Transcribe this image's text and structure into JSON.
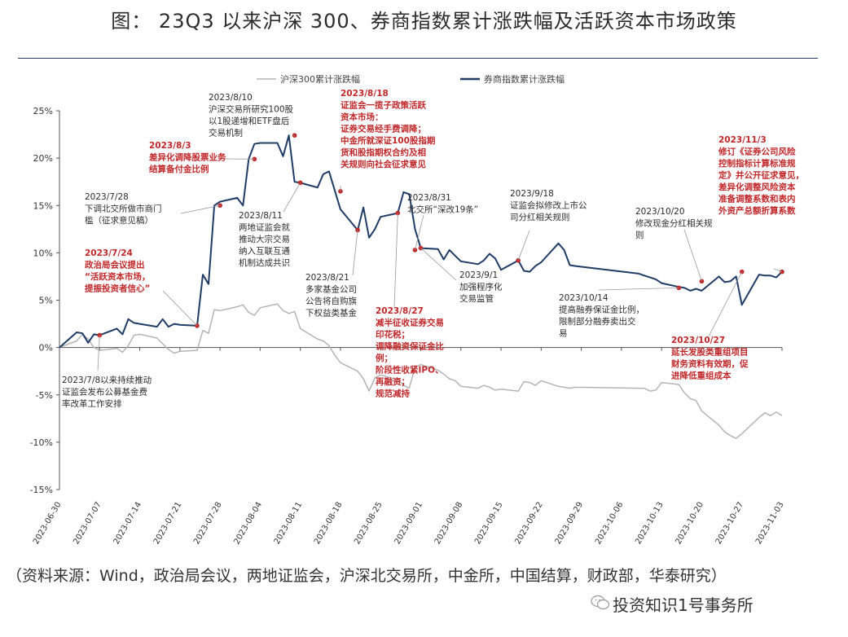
{
  "title": "图： 23Q3 以来沪深 300、券商指数累计涨跌幅及活跃资本市场政策",
  "source": "（资料来源：Wind，政治局会议，两地证监会，沪深北交易所，中金所，中国结算，财政部，华泰研究）",
  "watermark": "投资知识1号事务所",
  "chart_data": {
    "type": "line",
    "x": [
      "2023-06-30",
      "2023-07-03",
      "2023-07-04",
      "2023-07-05",
      "2023-07-06",
      "2023-07-07",
      "2023-07-10",
      "2023-07-11",
      "2023-07-12",
      "2023-07-13",
      "2023-07-14",
      "2023-07-17",
      "2023-07-18",
      "2023-07-19",
      "2023-07-20",
      "2023-07-21",
      "2023-07-24",
      "2023-07-25",
      "2023-07-26",
      "2023-07-27",
      "2023-07-28",
      "2023-07-31",
      "2023-08-01",
      "2023-08-02",
      "2023-08-03",
      "2023-08-04",
      "2023-08-07",
      "2023-08-08",
      "2023-08-09",
      "2023-08-10",
      "2023-08-11",
      "2023-08-14",
      "2023-08-15",
      "2023-08-16",
      "2023-08-17",
      "2023-08-18",
      "2023-08-21",
      "2023-08-22",
      "2023-08-23",
      "2023-08-24",
      "2023-08-25",
      "2023-08-28",
      "2023-08-29",
      "2023-08-30",
      "2023-08-31",
      "2023-09-01",
      "2023-09-04",
      "2023-09-05",
      "2023-09-06",
      "2023-09-07",
      "2023-09-08",
      "2023-09-11",
      "2023-09-12",
      "2023-09-13",
      "2023-09-14",
      "2023-09-15",
      "2023-09-18",
      "2023-09-19",
      "2023-09-20",
      "2023-09-21",
      "2023-09-22",
      "2023-09-25",
      "2023-09-26",
      "2023-09-27",
      "2023-09-28",
      "2023-10-09",
      "2023-10-10",
      "2023-10-11",
      "2023-10-12",
      "2023-10-13",
      "2023-10-16",
      "2023-10-17",
      "2023-10-18",
      "2023-10-19",
      "2023-10-20",
      "2023-10-23",
      "2023-10-24",
      "2023-10-25",
      "2023-10-26",
      "2023-10-27",
      "2023-10-30",
      "2023-10-31",
      "2023-11-01",
      "2023-11-02",
      "2023-11-03"
    ],
    "series": [
      {
        "name": "沪深300累计涨跌幅",
        "color": "#b4b4b4",
        "values": [
          0.0,
          0.7,
          1.4,
          0.9,
          0.0,
          -0.3,
          -0.1,
          -0.5,
          0.2,
          1.3,
          1.4,
          1.0,
          0.4,
          -0.2,
          -0.6,
          -0.4,
          -0.3,
          1.8,
          1.5,
          4.0,
          3.9,
          4.3,
          4.5,
          3.7,
          3.4,
          4.2,
          4.6,
          3.9,
          3.6,
          3.8,
          2.0,
          0.9,
          0.7,
          0.2,
          -0.8,
          -1.6,
          -2.5,
          -3.3,
          -4.6,
          -3.2,
          -2.9,
          -3.4,
          -4.0,
          -4.3,
          -2.1,
          -1.8,
          -2.4,
          -2.8,
          -3.3,
          -3.5,
          -4.1,
          -4.3,
          -4.0,
          -4.2,
          -4.5,
          -4.4,
          -4.6,
          -3.6,
          -3.7,
          -4.0,
          -3.5,
          -4.1,
          -4.2,
          -4.3,
          -4.2,
          -4.3,
          -4.3,
          -4.6,
          -4.5,
          -3.7,
          -3.9,
          -4.8,
          -5.4,
          -5.6,
          -6.7,
          -8.2,
          -8.9,
          -9.3,
          -9.6,
          -9.1,
          -7.4,
          -6.9,
          -7.2,
          -6.8,
          -7.2
        ]
      },
      {
        "name": "券商指数累计涨跌幅",
        "color": "#1f3b66",
        "values": [
          0.0,
          1.6,
          1.5,
          0.5,
          1.4,
          1.3,
          2.0,
          1.4,
          3.0,
          2.6,
          2.5,
          2.2,
          3.0,
          2.2,
          2.5,
          2.4,
          2.3,
          7.7,
          6.7,
          15.0,
          15.4,
          15.8,
          15.0,
          19.9,
          21.5,
          21.6,
          21.6,
          20.2,
          22.4,
          17.5,
          17.4,
          16.9,
          18.3,
          18.6,
          16.6,
          14.6,
          12.4,
          14.8,
          11.6,
          12.5,
          13.8,
          14.2,
          16.4,
          16.2,
          12.5,
          10.5,
          10.4,
          9.3,
          10.3,
          9.7,
          9.1,
          8.8,
          9.2,
          9.9,
          9.4,
          8.2,
          9.2,
          8.1,
          8.0,
          8.6,
          9.0,
          11.0,
          10.3,
          8.7,
          8.6,
          7.8,
          7.6,
          7.4,
          7.2,
          6.8,
          6.4,
          6.3,
          6.0,
          6.2,
          6.0,
          7.5,
          6.9,
          7.0,
          7.5,
          4.5,
          7.7,
          7.6,
          7.6,
          7.4,
          8.0
        ]
      }
    ],
    "x_ticks": [
      "2023-06-30",
      "2023-07-07",
      "2023-07-14",
      "2023-07-21",
      "2023-07-28",
      "2023-08-04",
      "2023-08-11",
      "2023-08-18",
      "2023-08-25",
      "2023-09-01",
      "2023-09-08",
      "2023-09-15",
      "2023-09-22",
      "2023-09-29",
      "2023-10-06",
      "2023-10-13",
      "2023-10-20",
      "2023-10-27",
      "2023-11-03"
    ],
    "y_ticks": [
      25,
      20,
      15,
      10,
      5,
      0,
      -5,
      -10,
      -15
    ],
    "y_tick_labels": [
      "25%",
      "20%",
      "15%",
      "10%",
      "5%",
      "0%",
      "-5%",
      "-10%",
      "-15%"
    ],
    "ylim": [
      -15,
      25
    ],
    "xlim": [
      "2023-06-30",
      "2023-11-03"
    ],
    "grid": false,
    "legend_position": "top-center",
    "markers": [
      {
        "date": "2023-07-07",
        "value": 1.3
      },
      {
        "date": "2023-07-24",
        "value": 2.3
      },
      {
        "date": "2023-07-28",
        "value": 15.0
      },
      {
        "date": "2023-08-03",
        "value": 19.9
      },
      {
        "date": "2023-08-10",
        "value": 22.4
      },
      {
        "date": "2023-08-11",
        "value": 17.4
      },
      {
        "date": "2023-08-18",
        "value": 16.5
      },
      {
        "date": "2023-08-21",
        "value": 12.4
      },
      {
        "date": "2023-08-28",
        "value": 14.2
      },
      {
        "date": "2023-08-31",
        "value": 10.3
      },
      {
        "date": "2023-09-01",
        "value": 10.5
      },
      {
        "date": "2023-09-18",
        "value": 9.2
      },
      {
        "date": "2023-10-16",
        "value": 6.3
      },
      {
        "date": "2023-10-20",
        "value": 7.0
      },
      {
        "date": "2023-10-27",
        "value": 8.0
      },
      {
        "date": "2023-11-03",
        "value": 8.0
      }
    ],
    "annotations": [
      {
        "color": "dark",
        "lines": [
          "2023/8/10",
          "沪深交易所研究100股",
          "以1股递增和ETF盘后",
          "交易机制"
        ]
      },
      {
        "color": "red",
        "lines": [
          "2023/8/3",
          "差异化调降股票业务",
          "结算备付金比例"
        ]
      },
      {
        "color": "dark",
        "lines": [
          "2023/7/28",
          "下调北交所做市商门",
          "槛（征求意见稿）"
        ]
      },
      {
        "color": "red",
        "lines": [
          "2023/7/24",
          "政治局会议提出",
          "“活跃资本市场，",
          "提振投资者信心”"
        ]
      },
      {
        "color": "dark",
        "lines": [
          "2023/7/8以来持续推动",
          "证监会发布公募基金费",
          "率改革工作安排"
        ]
      },
      {
        "color": "dark",
        "lines": [
          "2023/8/11",
          "两地证监会就",
          "推动大宗交易",
          "纳入互联互通",
          "机制达成共识"
        ]
      },
      {
        "color": "red",
        "lines": [
          "2023/8/18",
          "证监会一揽子政策活跃",
          "资本市场：",
          "证券交易经手费调降；",
          "中金所就深证100股指期",
          "货和股指期权合约及相",
          "关规则向社会征求意见"
        ]
      },
      {
        "color": "dark",
        "lines": [
          "2023/8/21",
          "多家基金公司",
          "公告将自购旗",
          "下权益类基金"
        ]
      },
      {
        "color": "red",
        "lines": [
          "2023/8/27",
          "减半征收证券交易",
          "印花税；",
          "调降融资保证金比",
          "例；",
          "阶段性收紧IPO、",
          "再融资；",
          "规范减持"
        ]
      },
      {
        "color": "dark",
        "lines": [
          "2023/8/31",
          "北交所“深改19条”"
        ]
      },
      {
        "color": "dark",
        "lines": [
          "2023/9/1",
          "加强程序化",
          "交易监管"
        ]
      },
      {
        "color": "dark",
        "lines": [
          "2023/9/18",
          "证监会拟修改上市公",
          "司分红相关规则"
        ]
      },
      {
        "color": "dark",
        "lines": [
          "2023/10/14",
          "提高融券保证金比例，",
          "限制部分融券卖出交",
          "易"
        ]
      },
      {
        "color": "dark",
        "lines": [
          "2023/10/20",
          "修改现金分红相关规",
          "则"
        ]
      },
      {
        "color": "red",
        "lines": [
          "2023/10/27",
          "延长发股类重组项目",
          "财务资料有效期，促",
          "进降低重组成本"
        ]
      },
      {
        "color": "red",
        "lines": [
          "2023/11/3",
          "修订《证券公司风险",
          "控制指标计算标准规",
          "定》并公开征求意见，",
          "差异化调整风险资本",
          "准备调整系数和表内",
          "外资产总额折算系数"
        ]
      }
    ]
  }
}
